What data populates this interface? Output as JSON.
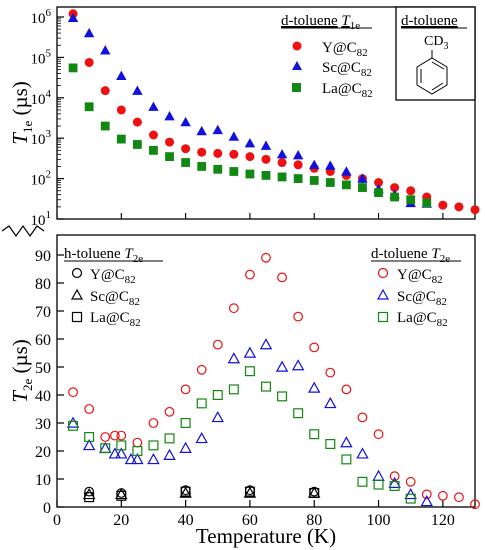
{
  "chart_data": [
    {
      "type": "scatter",
      "ylabel_main": "T",
      "ylabel_sub": "1e",
      "ylabel_unit": " (µs)",
      "yscale": "log",
      "ylim": [
        10,
        1000000
      ],
      "xlim": [
        0,
        130
      ],
      "y_ticks": [
        {
          "value": 10,
          "base": "10",
          "exp": "1"
        },
        {
          "value": 100,
          "base": "10",
          "exp": "2"
        },
        {
          "value": 1000,
          "base": "10",
          "exp": "3"
        },
        {
          "value": 10000,
          "base": "10",
          "exp": "4"
        },
        {
          "value": 100000,
          "base": "10",
          "exp": "5"
        },
        {
          "value": 1000000,
          "base": "10",
          "exp": "6"
        }
      ],
      "legend": {
        "title": "d-toluene",
        "title_symbol": "T",
        "title_sub": "1e",
        "placement": "top-right"
      },
      "inset": {
        "title": "d-toluene",
        "label": "CD",
        "label_sub": "3"
      },
      "series": [
        {
          "name": "Y@C",
          "name_sub": "82",
          "marker": "circle",
          "filled": true,
          "color": "#ee1111",
          "points": [
            [
              5,
              1200000
            ],
            [
              10,
              75000
            ],
            [
              15,
              15000
            ],
            [
              20,
              5000
            ],
            [
              25,
              2500
            ],
            [
              30,
              1200
            ],
            [
              35,
              800
            ],
            [
              40,
              550
            ],
            [
              45,
              450
            ],
            [
              50,
              420
            ],
            [
              55,
              400
            ],
            [
              60,
              350
            ],
            [
              65,
              300
            ],
            [
              70,
              250
            ],
            [
              75,
              220
            ],
            [
              80,
              180
            ],
            [
              85,
              150
            ],
            [
              90,
              120
            ],
            [
              95,
              100
            ],
            [
              100,
              80
            ],
            [
              105,
              60
            ],
            [
              110,
              50
            ],
            [
              115,
              35
            ],
            [
              120,
              22
            ],
            [
              125,
              20
            ],
            [
              130,
              17
            ]
          ]
        },
        {
          "name": "Sc@C",
          "name_sub": "82",
          "marker": "triangle",
          "filled": true,
          "color": "#1111dd",
          "points": [
            [
              5,
              950000
            ],
            [
              10,
              400000
            ],
            [
              15,
              150000
            ],
            [
              20,
              35000
            ],
            [
              25,
              15000
            ],
            [
              30,
              6000
            ],
            [
              35,
              3500
            ],
            [
              40,
              2500
            ],
            [
              45,
              1500
            ],
            [
              50,
              1600
            ],
            [
              55,
              1100
            ],
            [
              60,
              750
            ],
            [
              65,
              650
            ],
            [
              70,
              400
            ],
            [
              75,
              380
            ],
            [
              80,
              220
            ],
            [
              85,
              210
            ],
            [
              90,
              150
            ],
            [
              95,
              100
            ],
            [
              100,
              55
            ],
            [
              105,
              40
            ],
            [
              110,
              25
            ],
            [
              115,
              24
            ]
          ]
        },
        {
          "name": "La@C",
          "name_sub": "82",
          "marker": "square",
          "filled": true,
          "color": "#118811",
          "points": [
            [
              5,
              55000
            ],
            [
              10,
              6000
            ],
            [
              15,
              2000
            ],
            [
              20,
              950
            ],
            [
              25,
              700
            ],
            [
              30,
              500
            ],
            [
              35,
              350
            ],
            [
              40,
              250
            ],
            [
              45,
              200
            ],
            [
              50,
              170
            ],
            [
              55,
              150
            ],
            [
              60,
              130
            ],
            [
              65,
              120
            ],
            [
              70,
              110
            ],
            [
              75,
              100
            ],
            [
              80,
              90
            ],
            [
              85,
              80
            ],
            [
              90,
              70
            ],
            [
              95,
              60
            ],
            [
              100,
              45
            ],
            [
              105,
              35
            ],
            [
              110,
              30
            ],
            [
              115,
              25
            ]
          ]
        }
      ]
    },
    {
      "type": "scatter",
      "ylabel_main": "T",
      "ylabel_sub": "2e",
      "ylabel_unit": " (µs)",
      "xlabel": "Temperature (K)",
      "xlim": [
        0,
        130
      ],
      "ylim": [
        0,
        90
      ],
      "x_ticks": [
        0,
        20,
        40,
        60,
        80,
        100,
        120
      ],
      "y_ticks": [
        0,
        10,
        20,
        30,
        40,
        50,
        60,
        70,
        80,
        90
      ],
      "legends": [
        {
          "title": "h-toluene",
          "title_symbol": "T",
          "title_sub": "2e",
          "placement": "top-left",
          "entries": [
            {
              "name": "Y@C",
              "name_sub": "82",
              "marker": "circle",
              "color": "#000000"
            },
            {
              "name": "Sc@C",
              "name_sub": "82",
              "marker": "triangle",
              "color": "#000000"
            },
            {
              "name": "La@C",
              "name_sub": "82",
              "marker": "square",
              "color": "#000000"
            }
          ]
        },
        {
          "title": "d-toluene",
          "title_symbol": "T",
          "title_sub": "2e",
          "placement": "top-right",
          "entries": [
            {
              "name": "Y@C",
              "name_sub": "82",
              "marker": "circle",
              "color": "#ee1111"
            },
            {
              "name": "Sc@C",
              "name_sub": "82",
              "marker": "triangle",
              "color": "#1111dd"
            },
            {
              "name": "La@C",
              "name_sub": "82",
              "marker": "square",
              "color": "#118811"
            }
          ]
        }
      ],
      "series": [
        {
          "name": "Y@C82 (d-toluene)",
          "marker": "circle",
          "filled": false,
          "color": "#ee1111",
          "points": [
            [
              5,
              41
            ],
            [
              10,
              35
            ],
            [
              15,
              25
            ],
            [
              18,
              25.5
            ],
            [
              20,
              25.5
            ],
            [
              25,
              23
            ],
            [
              30,
              30
            ],
            [
              35,
              34
            ],
            [
              40,
              42
            ],
            [
              45,
              49
            ],
            [
              50,
              58
            ],
            [
              55,
              71
            ],
            [
              60,
              83
            ],
            [
              65,
              89
            ],
            [
              70,
              82
            ],
            [
              75,
              68
            ],
            [
              80,
              57
            ],
            [
              85,
              48
            ],
            [
              90,
              42
            ],
            [
              95,
              32
            ],
            [
              100,
              26
            ],
            [
              105,
              11
            ],
            [
              110,
              9
            ],
            [
              115,
              4.5
            ],
            [
              120,
              4
            ],
            [
              125,
              3.5
            ],
            [
              130,
              1
            ]
          ]
        },
        {
          "name": "Sc@C82 (d-toluene)",
          "marker": "triangle",
          "filled": false,
          "color": "#1111dd",
          "points": [
            [
              5,
              30
            ],
            [
              10,
              22
            ],
            [
              15,
              21
            ],
            [
              18,
              19
            ],
            [
              20,
              19
            ],
            [
              23,
              17
            ],
            [
              25,
              17
            ],
            [
              30,
              17
            ],
            [
              35,
              18.5
            ],
            [
              40,
              21
            ],
            [
              45,
              24.5
            ],
            [
              50,
              32
            ],
            [
              55,
              53
            ],
            [
              60,
              55
            ],
            [
              65,
              58
            ],
            [
              70,
              50
            ],
            [
              75,
              50.5
            ],
            [
              80,
              42.5
            ],
            [
              85,
              37
            ],
            [
              90,
              23
            ],
            [
              95,
              19
            ],
            [
              100,
              11
            ],
            [
              105,
              8.5
            ],
            [
              110,
              4.5
            ],
            [
              115,
              2
            ]
          ]
        },
        {
          "name": "La@C82 (d-toluene)",
          "marker": "square",
          "filled": false,
          "color": "#118811",
          "points": [
            [
              5,
              29
            ],
            [
              10,
              25
            ],
            [
              15,
              21
            ],
            [
              20,
              22
            ],
            [
              25,
              20
            ],
            [
              30,
              22
            ],
            [
              35,
              24.5
            ],
            [
              40,
              30
            ],
            [
              45,
              37
            ],
            [
              50,
              40
            ],
            [
              55,
              42
            ],
            [
              60,
              48.5
            ],
            [
              65,
              43
            ],
            [
              70,
              39.5
            ],
            [
              75,
              33.5
            ],
            [
              80,
              26
            ],
            [
              85,
              22.5
            ],
            [
              90,
              17
            ],
            [
              95,
              9
            ],
            [
              100,
              8
            ],
            [
              105,
              7.5
            ],
            [
              110,
              3
            ]
          ]
        },
        {
          "name": "Y@C82 (h-toluene)",
          "marker": "circle",
          "filled": false,
          "color": "#000000",
          "points": [
            [
              10,
              5.5
            ],
            [
              20,
              5
            ],
            [
              40,
              6
            ],
            [
              60,
              6
            ],
            [
              80,
              5.5
            ]
          ]
        },
        {
          "name": "Sc@C82 (h-toluene)",
          "marker": "triangle",
          "filled": false,
          "color": "#000000",
          "points": [
            [
              10,
              4.5
            ],
            [
              20,
              4.5
            ],
            [
              40,
              5
            ],
            [
              60,
              5
            ],
            [
              80,
              5
            ]
          ]
        },
        {
          "name": "La@C82 (h-toluene)",
          "marker": "square",
          "filled": false,
          "color": "#000000",
          "points": [
            [
              10,
              3.5
            ],
            [
              20,
              4
            ],
            [
              40,
              5.5
            ],
            [
              60,
              5.5
            ],
            [
              80,
              5
            ]
          ]
        }
      ]
    }
  ]
}
